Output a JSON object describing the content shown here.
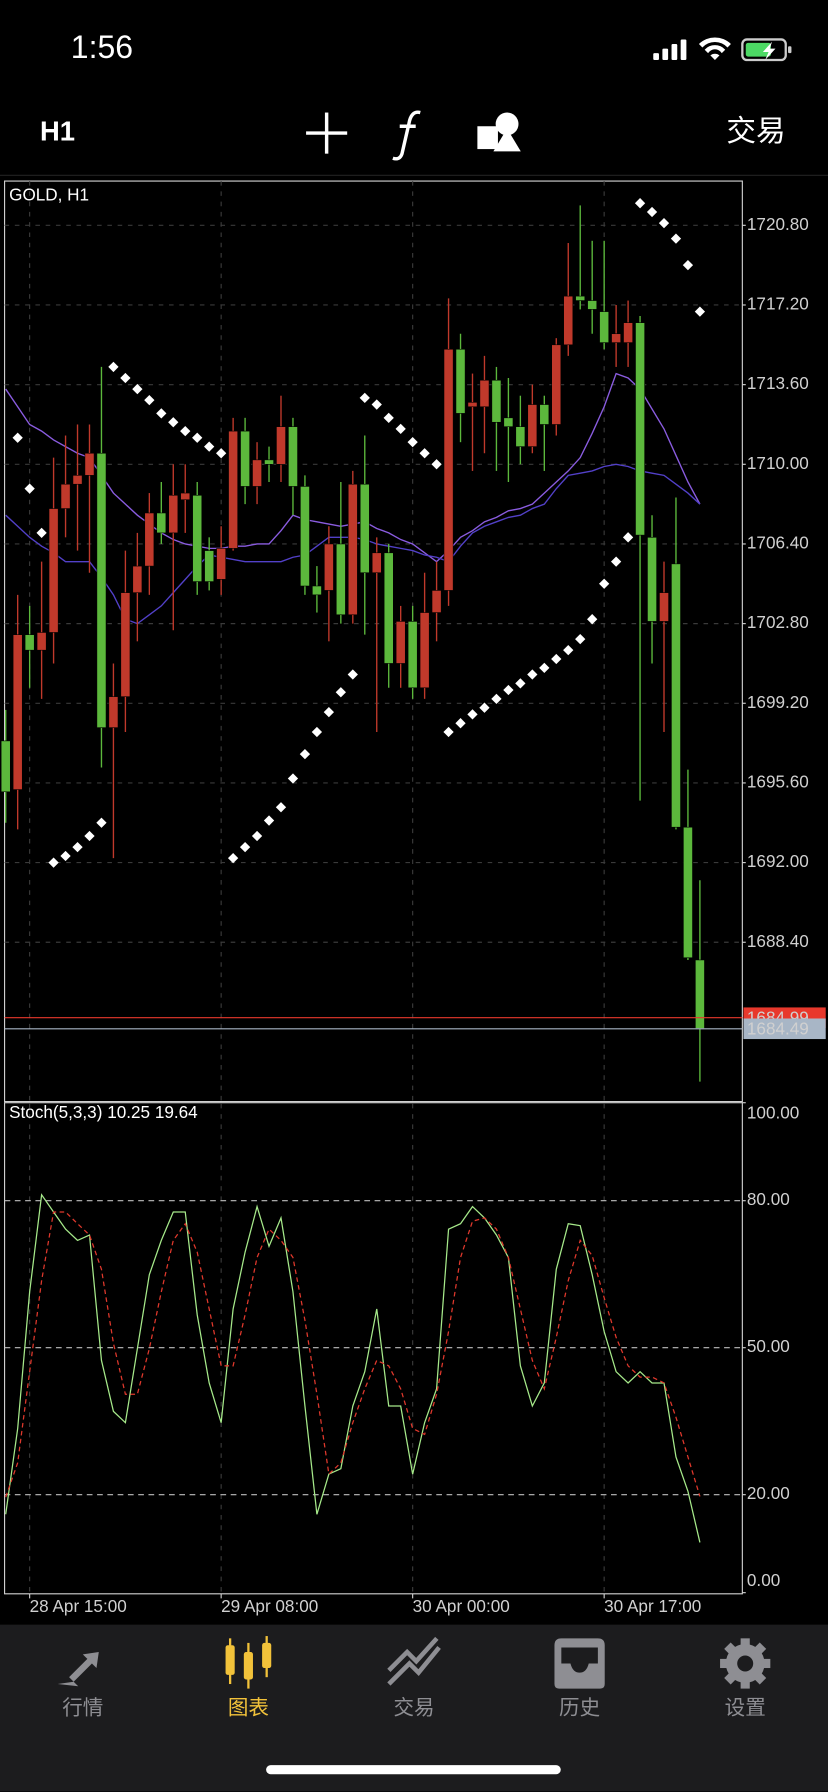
{
  "status_bar": {
    "time": "1:56"
  },
  "toolbar": {
    "timeframe": "H1",
    "trade": "交易"
  },
  "chart_data": [
    {
      "type": "candlestick",
      "title": "GOLD, H1",
      "categories": [
        null,
        null,
        "28 Apr 15:00",
        null,
        null,
        null,
        null,
        null,
        null,
        null,
        null,
        null,
        null,
        null,
        null,
        null,
        null,
        null,
        "29 Apr 08:00",
        null,
        null,
        null,
        null,
        null,
        null,
        null,
        null,
        null,
        null,
        null,
        null,
        null,
        null,
        null,
        "30 Apr 00:00",
        null,
        null,
        null,
        null,
        null,
        null,
        null,
        null,
        null,
        null,
        null,
        null,
        null,
        null,
        null,
        "30 Apr 17:00",
        null,
        null,
        null,
        null,
        null,
        null,
        null,
        null
      ],
      "open": [
        1697.5,
        1695.3,
        1702.3,
        1701.6,
        1702.4,
        1708.0,
        1709.1,
        1709.5,
        1710.5,
        1698.1,
        1699.5,
        1704.2,
        1705.4,
        1707.8,
        1706.9,
        1708.4,
        1708.6,
        1706.1,
        1704.8,
        1706.2,
        1711.5,
        1709.0,
        1710.2,
        1710.0,
        1711.7,
        1709.0,
        1704.5,
        1704.3,
        1706.4,
        1703.2,
        1709.1,
        1705.1,
        1706.0,
        1701.0,
        1702.9,
        1699.9,
        1703.3,
        1704.3,
        1715.2,
        1712.6,
        1712.6,
        1713.8,
        1712.1,
        1711.7,
        1710.8,
        1712.7,
        1711.8,
        1715.4,
        1717.6,
        1717.4,
        1716.9,
        1715.5,
        1715.5,
        1716.4,
        1706.7,
        1702.9,
        1705.5,
        1693.6,
        1687.6
      ],
      "high": [
        1698.9,
        1704.1,
        1703.6,
        1705.6,
        1710.3,
        1711.3,
        1711.8,
        1711.8,
        1714.4,
        1701.0,
        1706.1,
        1706.9,
        1708.7,
        1709.2,
        1710.0,
        1710.0,
        1709.2,
        1706.7,
        1707.2,
        1712.1,
        1712.1,
        1711.0,
        1710.8,
        1713.1,
        1712.1,
        1709.5,
        1705.4,
        1707.2,
        1709.2,
        1709.7,
        1711.3,
        1706.7,
        1706.4,
        1703.6,
        1703.6,
        1705.1,
        1705.6,
        1717.5,
        1715.9,
        1714.1,
        1714.9,
        1714.4,
        1713.9,
        1713.1,
        1713.6,
        1713.1,
        1715.7,
        1720.0,
        1721.7,
        1720.1,
        1720.1,
        1717.2,
        1717.4,
        1716.7,
        1707.7,
        1705.6,
        1708.5,
        1696.2,
        1691.2
      ],
      "low": [
        1693.8,
        1693.5,
        1699.9,
        1699.4,
        1701.0,
        1706.7,
        1706.1,
        1705.1,
        1696.3,
        1692.2,
        1697.9,
        1702.0,
        1704.1,
        1706.4,
        1702.5,
        1706.9,
        1704.1,
        1704.3,
        1704.1,
        1706.1,
        1708.2,
        1708.2,
        1709.2,
        1709.2,
        1707.7,
        1704.1,
        1703.3,
        1702.0,
        1702.8,
        1702.8,
        1702.3,
        1697.9,
        1699.9,
        1699.9,
        1699.4,
        1699.4,
        1702.0,
        1703.6,
        1711.0,
        1709.7,
        1710.5,
        1709.7,
        1709.2,
        1710.0,
        1710.5,
        1709.7,
        1711.3,
        1714.9,
        1717.0,
        1715.9,
        1715.2,
        1714.4,
        1714.4,
        1694.8,
        1701.0,
        1697.9,
        1693.5,
        1687.6,
        1682.1
      ],
      "close": [
        1695.2,
        1702.3,
        1701.6,
        1702.4,
        1708.0,
        1709.1,
        1709.5,
        1710.5,
        1698.1,
        1699.5,
        1704.2,
        1705.4,
        1707.8,
        1706.9,
        1708.6,
        1708.7,
        1704.7,
        1704.7,
        1706.2,
        1711.5,
        1709.0,
        1710.2,
        1710.0,
        1711.7,
        1709.0,
        1704.5,
        1704.1,
        1706.4,
        1703.2,
        1709.1,
        1705.1,
        1706.0,
        1701.0,
        1702.9,
        1699.9,
        1703.3,
        1704.3,
        1715.2,
        1712.3,
        1712.8,
        1713.8,
        1711.9,
        1711.7,
        1710.8,
        1712.7,
        1711.8,
        1715.4,
        1717.6,
        1717.4,
        1717.0,
        1715.5,
        1715.9,
        1716.4,
        1706.8,
        1702.9,
        1704.2,
        1693.6,
        1687.7,
        1684.5
      ],
      "up_color": "#c0392b",
      "down_color": "#5cb83c",
      "series": [
        {
          "color": "#8a5ce0",
          "values": [
            1713.4,
            1712.6,
            1711.8,
            1711.5,
            1711.1,
            1710.8,
            1710.5,
            1710.3,
            1709.5,
            1708.7,
            1708.2,
            1707.7,
            1707.3,
            1706.9,
            1706.6,
            1706.4,
            1706.3,
            1706.2,
            1706.2,
            1706.3,
            1706.3,
            1706.4,
            1706.4,
            1707.0,
            1707.7,
            1707.5,
            1707.4,
            1707.3,
            1707.2,
            1707.3,
            1707.4,
            1707.1,
            1706.9,
            1706.6,
            1706.4,
            1706.0,
            1705.6,
            1706.1,
            1706.7,
            1707.0,
            1707.4,
            1707.6,
            1707.9,
            1708.0,
            1708.2,
            1708.7,
            1709.2,
            1709.7,
            1710.3,
            1711.4,
            1712.6,
            1714.1,
            1713.9,
            1713.4,
            1712.5,
            1711.6,
            1710.4,
            1709.2,
            1708.2
          ]
        },
        {
          "color": "#5240c8",
          "values": [
            1707.7,
            1707.2,
            1706.7,
            1706.3,
            1706.0,
            1705.6,
            1705.6,
            1705.6,
            1704.9,
            1704.1,
            1703.0,
            1702.8,
            1703.2,
            1703.6,
            1704.2,
            1704.8,
            1705.4,
            1705.9,
            1705.8,
            1705.7,
            1705.6,
            1705.6,
            1705.6,
            1705.6,
            1705.8,
            1705.9,
            1706.3,
            1706.7,
            1706.7,
            1706.7,
            1706.6,
            1706.4,
            1706.3,
            1706.2,
            1706.1,
            1705.9,
            1705.8,
            1705.6,
            1706.3,
            1706.9,
            1707.2,
            1707.4,
            1707.6,
            1707.7,
            1708.0,
            1708.2,
            1708.9,
            1709.5,
            1709.6,
            1709.7,
            1709.9,
            1710.0,
            1709.9,
            1709.7,
            1709.6,
            1709.5,
            1709.1,
            1708.7,
            1708.2
          ]
        }
      ],
      "sar": {
        "color": "#ffffff",
        "values": [
          null,
          1711.2,
          1708.9,
          1706.9,
          1692.0,
          1692.3,
          1692.7,
          1693.2,
          1693.8,
          1714.4,
          1713.9,
          1713.4,
          1712.9,
          1712.3,
          1711.9,
          1711.5,
          1711.2,
          1710.8,
          1710.5,
          1692.2,
          1692.7,
          1693.2,
          1693.9,
          1694.5,
          1695.8,
          1696.9,
          1697.9,
          1698.8,
          1699.7,
          1700.5,
          1713.0,
          1712.7,
          1712.1,
          1711.6,
          1711.0,
          1710.5,
          1710.0,
          1697.9,
          1698.3,
          1698.7,
          1699.0,
          1699.4,
          1699.8,
          1700.1,
          1700.5,
          1700.8,
          1701.2,
          1701.6,
          1702.1,
          1703.0,
          1704.6,
          1705.6,
          1706.7,
          1721.8,
          1721.4,
          1720.9,
          1720.2,
          1719.0,
          1716.9
        ]
      },
      "price_lines": [
        {
          "value": 1684.99,
          "color": "#e8382c"
        },
        {
          "value": 1684.49,
          "color": "#a8b6c6"
        }
      ],
      "ylim": [
        1681.2,
        1722.8
      ],
      "yticks": [
        {
          "value": 1720.8,
          "label": "1720.80"
        },
        {
          "value": 1717.2,
          "label": "1717.20"
        },
        {
          "value": 1713.6,
          "label": "1713.60"
        },
        {
          "value": 1710.0,
          "label": "1710.00"
        },
        {
          "value": 1706.4,
          "label": "1706.40"
        },
        {
          "value": 1702.8,
          "label": "1702.80"
        },
        {
          "value": 1699.2,
          "label": "1699.20"
        },
        {
          "value": 1695.6,
          "label": "1695.60"
        },
        {
          "value": 1692.0,
          "label": "1692.00"
        },
        {
          "value": 1688.4,
          "label": "1688.40"
        }
      ],
      "grid": true
    },
    {
      "type": "line",
      "title": "Stoch(5,3,3)",
      "series": [
        {
          "color": "#a6e98a",
          "dash": false,
          "values": [
            16.0,
            33.5,
            61.4,
            81.2,
            77.7,
            74.2,
            71.9,
            73.0,
            47.4,
            37.0,
            34.7,
            49.8,
            64.9,
            71.9,
            77.7,
            77.7,
            56.7,
            42.8,
            34.7,
            57.9,
            69.5,
            78.8,
            70.7,
            76.5,
            61.4,
            38.1,
            16.0,
            24.2,
            25.3,
            38.1,
            45.1,
            57.9,
            38.1,
            38.1,
            24.2,
            34.7,
            41.6,
            74.2,
            75.3,
            78.8,
            76.5,
            73.0,
            68.4,
            46.3,
            38.1,
            42.8,
            66.0,
            75.3,
            74.9,
            64.9,
            53.3,
            45.1,
            42.8,
            45.1,
            42.8,
            42.8,
            27.7,
            20.7,
            10.25
          ]
        },
        {
          "color": "#e0382c",
          "dash": true,
          "values": [
            19.5,
            26.5,
            45.1,
            63.7,
            77.7,
            77.7,
            75.3,
            73.0,
            66.0,
            50.9,
            40.5,
            40.5,
            49.8,
            61.4,
            71.9,
            75.3,
            69.5,
            57.9,
            46.3,
            46.3,
            56.7,
            68.4,
            74.2,
            71.9,
            68.4,
            55.6,
            40.5,
            24.2,
            26.5,
            34.7,
            41.6,
            47.4,
            46.3,
            41.6,
            33.5,
            32.3,
            40.5,
            53.3,
            68.4,
            75.8,
            76.5,
            74.2,
            68.4,
            57.9,
            47.4,
            41.6,
            52.1,
            63.7,
            71.9,
            68.8,
            60.2,
            52.1,
            46.3,
            44.0,
            44.0,
            42.8,
            35.8,
            27.7,
            19.64
          ]
        }
      ],
      "ylim": [
        0,
        100
      ],
      "yticks": [
        {
          "value": 100,
          "label": "100.00"
        },
        {
          "value": 80,
          "label": "80.00"
        },
        {
          "value": 50,
          "label": "50.00"
        },
        {
          "value": 20,
          "label": "20.00"
        },
        {
          "value": 0,
          "label": "0.00"
        }
      ],
      "levels": [
        20,
        50,
        80
      ]
    }
  ],
  "tab_bar": {
    "tabs": [
      {
        "label": "行情"
      },
      {
        "label": "图表"
      },
      {
        "label": "交易"
      },
      {
        "label": "历史"
      },
      {
        "label": "设置"
      }
    ],
    "active": 1,
    "active_color": "#f2c23a",
    "color": "#8e8e93"
  }
}
